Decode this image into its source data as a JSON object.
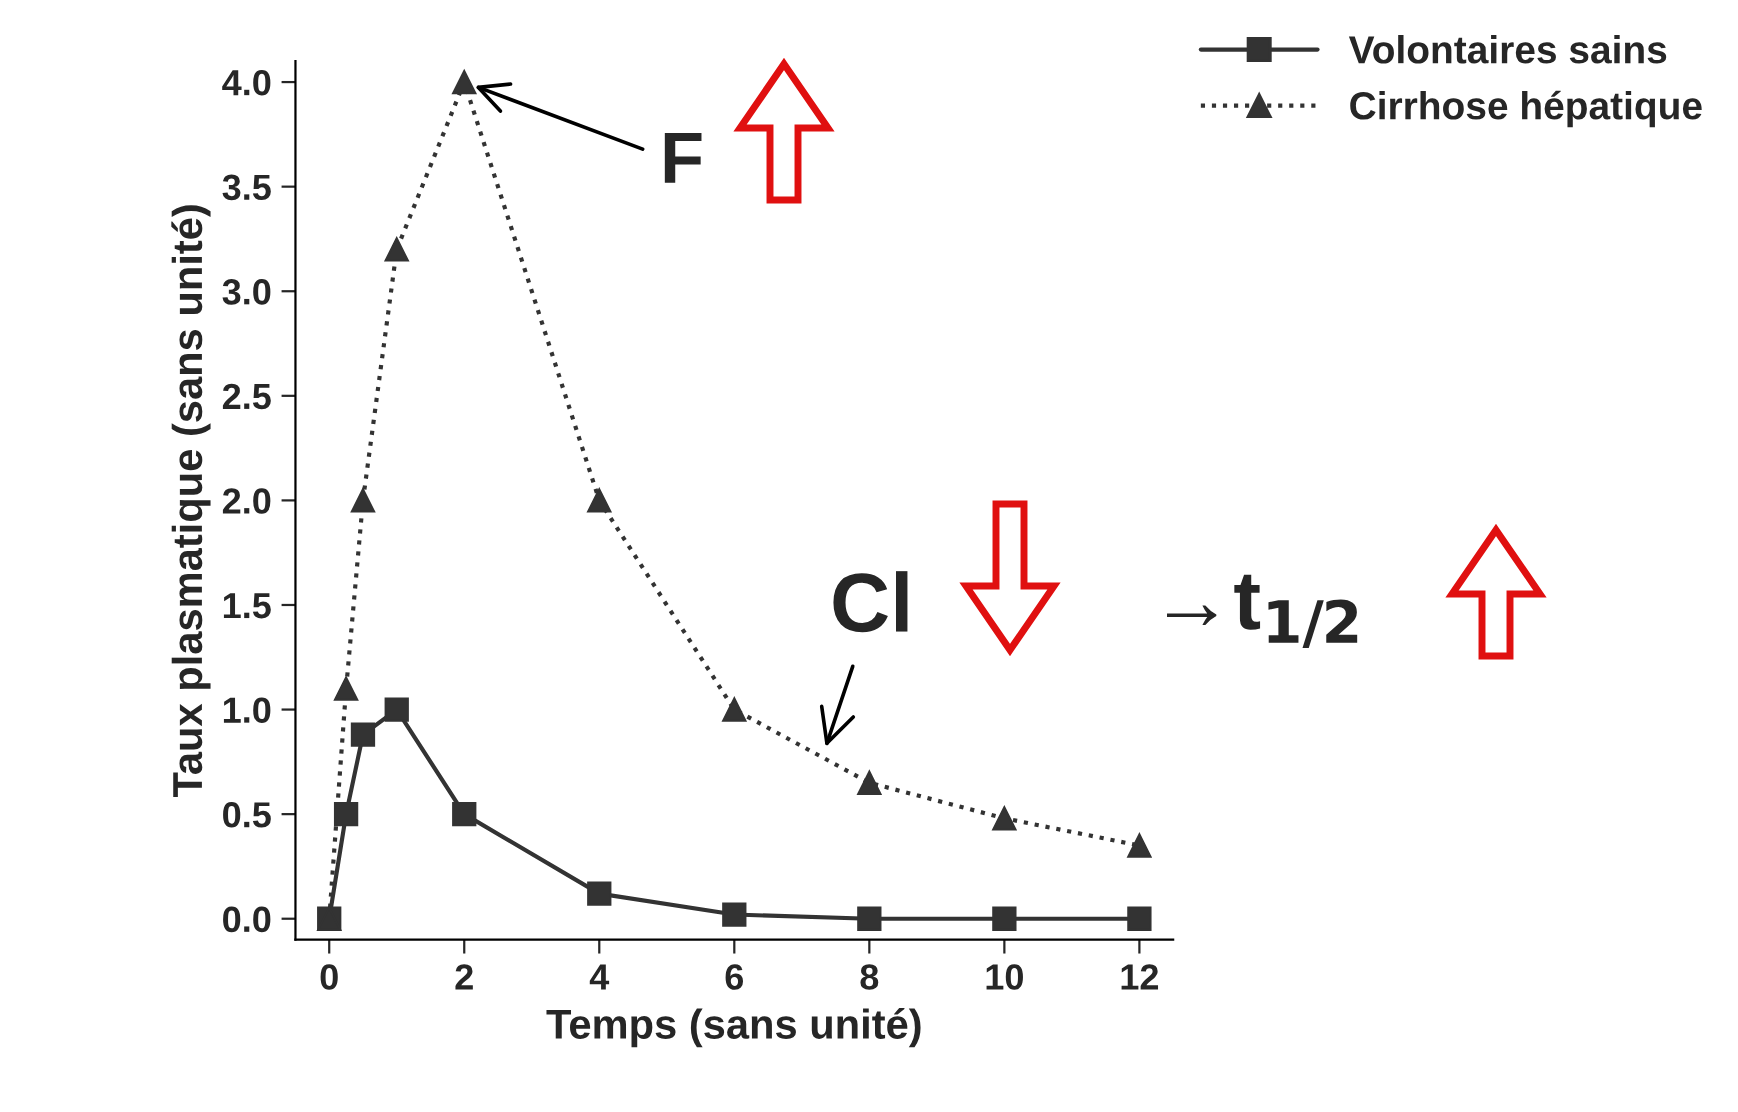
{
  "chart_data": {
    "type": "line",
    "xlabel": "Temps (sans unité)",
    "ylabel": "Taux plasmatique (sans unité)",
    "xlim": [
      -0.5,
      12.5
    ],
    "xticks": [
      0,
      2,
      4,
      6,
      8,
      10,
      12
    ],
    "ylim": [
      -0.1,
      4.1
    ],
    "yticks": [
      {
        "value": 0,
        "label": "0.0"
      },
      0.5,
      {
        "value": 1,
        "label": "1.0"
      },
      1.5,
      {
        "value": 2,
        "label": "2.0"
      },
      2.5,
      {
        "value": 3,
        "label": "3.0"
      },
      3.5,
      {
        "value": 4,
        "label": "4.0"
      }
    ],
    "grid": false,
    "legend": "top right",
    "series": [
      {
        "name": "Volontaires sains",
        "color": "#333333",
        "marker": "square",
        "line_style": "solid",
        "x": [
          0,
          0.25,
          0.5,
          1,
          2,
          4,
          6,
          8,
          10,
          12
        ],
        "values": [
          0,
          0.5,
          0.88,
          1.0,
          0.5,
          0.12,
          0.02,
          0,
          0,
          0
        ]
      },
      {
        "name": "Cirrhose hépatique",
        "color": "#333333",
        "marker": "triangle",
        "line_style": "dotted",
        "x": [
          0,
          0.25,
          0.5,
          1,
          2,
          4,
          6,
          8,
          10,
          12
        ],
        "values": [
          0,
          1.1,
          2.0,
          3.2,
          4.0,
          2.0,
          1.0,
          0.65,
          0.48,
          0.35
        ]
      }
    ],
    "annotations": [
      {
        "text": "F",
        "x": 2,
        "y": 4.0
      },
      {
        "text": "Cl",
        "x": 7.3,
        "y": 0.77
      },
      "→t$_{1/2}$"
    ]
  }
}
